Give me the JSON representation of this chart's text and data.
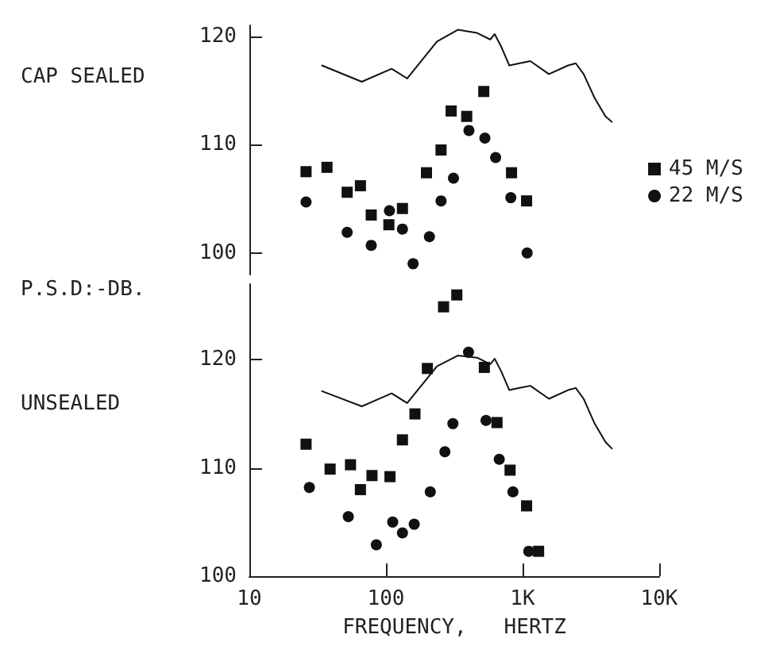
{
  "chart_data": [
    {
      "type": "scatter",
      "title": "CAP SEALED",
      "ylabel": "P.S.D:-DB.",
      "log": "x",
      "xlim": [
        10,
        10000
      ],
      "ylim": [
        98,
        121
      ],
      "yticks": [
        100,
        110,
        120
      ],
      "tick_labels": "y",
      "legend": "right",
      "grid": false,
      "series": [
        {
          "name": "45 M/S",
          "color": "#111111",
          "marker": "square",
          "x": [
            26,
            37,
            52,
            65,
            78,
            105,
            132,
            198,
            253,
            300,
            390,
            520,
            830,
            1070
          ],
          "values": [
            107.5,
            107.9,
            105.6,
            106.2,
            103.5,
            102.6,
            104.1,
            107.4,
            109.5,
            113.1,
            112.6,
            114.9,
            107.4,
            104.8
          ]
        },
        {
          "name": "22 M/S",
          "color": "#111111",
          "marker": "circle",
          "x": [
            26,
            52,
            78,
            106,
            132,
            158,
            208,
            253,
            312,
            405,
            530,
            635,
            820,
            1080
          ],
          "values": [
            104.7,
            101.9,
            100.7,
            103.9,
            102.2,
            99.0,
            101.5,
            104.8,
            106.9,
            111.3,
            110.6,
            108.8,
            105.1,
            100.0
          ]
        },
        {
          "type": "line",
          "color": "#111111",
          "marker": "none",
          "line_style": "solid",
          "x": [
            34,
            66.5,
            110,
            143,
            236,
            337,
            465,
            580,
            625,
            700,
            800,
            950,
            1140,
            1560,
            2150,
            2450,
            2800,
            3370,
            4050,
            4500
          ],
          "values": [
            117.3,
            115.8,
            117.0,
            116.1,
            119.5,
            120.6,
            120.3,
            119.7,
            120.2,
            119.0,
            117.3,
            117.5,
            117.7,
            116.5,
            117.3,
            117.5,
            116.5,
            114.3,
            112.6,
            112.1
          ]
        }
      ]
    },
    {
      "type": "scatter",
      "title": "UNSEALED",
      "xlabel": "FREQUENCY,   HERTZ",
      "log": "x",
      "xlim": [
        10,
        10000
      ],
      "xticks": [
        10,
        100,
        {
          "value": 1000,
          "label": "1K"
        },
        {
          "value": 10000,
          "label": "10K"
        }
      ],
      "ylim": [
        100,
        127
      ],
      "yticks": [
        100,
        110,
        120
      ],
      "legend": false,
      "grid": false,
      "series": [
        {
          "color": "#111111",
          "marker": "square",
          "x": [
            26,
            39,
            55,
            65,
            79,
            107,
            132,
            163,
            201,
            264,
            330,
            525,
            650,
            810,
            1070,
            1310
          ],
          "values": [
            112.2,
            109.9,
            110.3,
            108.0,
            109.3,
            109.2,
            112.6,
            115.0,
            119.2,
            124.9,
            126.0,
            119.3,
            114.2,
            109.8,
            106.5,
            102.3
          ]
        },
        {
          "color": "#111111",
          "marker": "circle",
          "x": [
            27.5,
            53,
            85,
            112,
            132,
            161,
            211,
            270,
            309,
            402,
            540,
            675,
            850,
            1110
          ],
          "values": [
            108.2,
            105.5,
            102.9,
            105.0,
            104.0,
            104.8,
            107.8,
            111.5,
            114.1,
            120.7,
            114.4,
            110.8,
            107.8,
            102.3
          ]
        },
        {
          "type": "line",
          "color": "#111111",
          "marker": "none",
          "line_style": "solid",
          "x": [
            34,
            66.5,
            110,
            143,
            236,
            337,
            465,
            580,
            625,
            700,
            800,
            950,
            1140,
            1560,
            2150,
            2450,
            2800,
            3370,
            4050,
            4500
          ],
          "values": [
            117.1,
            115.7,
            116.9,
            116.0,
            119.4,
            120.4,
            120.2,
            119.6,
            120.1,
            118.9,
            117.2,
            117.4,
            117.6,
            116.4,
            117.2,
            117.4,
            116.4,
            114.1,
            112.4,
            111.8
          ]
        }
      ]
    }
  ]
}
